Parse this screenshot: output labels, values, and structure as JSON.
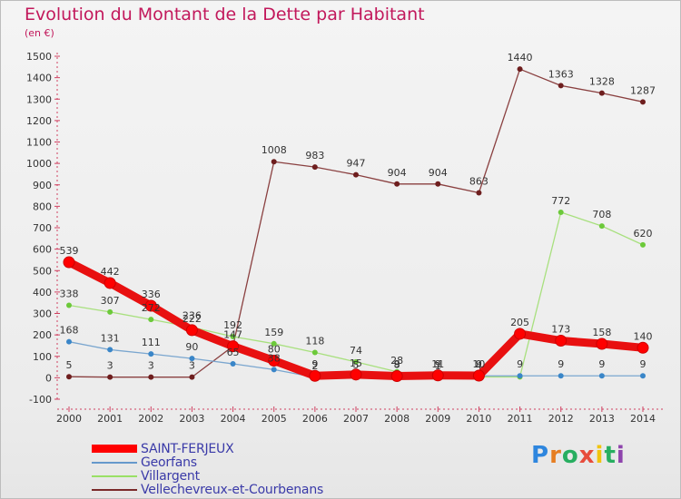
{
  "title": "Evolution du Montant de la Dette par Habitant",
  "unit": "(en €)",
  "logo": {
    "text": "Proxiti",
    "colors": [
      "#2e86de",
      "#e67e22",
      "#27ae60",
      "#e74c3c",
      "#f1c40f",
      "#27ae60",
      "#8e44ad"
    ]
  },
  "legend": [
    {
      "label": "SAINT-FERJEUX",
      "color": "#ff0000"
    },
    {
      "label": "Georfans",
      "color": "#6699cc"
    },
    {
      "label": "Villargent",
      "color": "#99e066"
    },
    {
      "label": "Vellechevreux-et-Courbenans",
      "color": "#7a2a2a"
    }
  ],
  "chart_data": {
    "type": "line",
    "title": "Evolution du Montant de la Dette par Habitant",
    "ylabel": "(en €)",
    "xlabel": "",
    "x": [
      "2000",
      "2001",
      "2002",
      "2003",
      "2004",
      "2005",
      "2006",
      "2007",
      "2008",
      "2009",
      "2010",
      "2011",
      "2012",
      "2013",
      "2014"
    ],
    "ylim": [
      -100,
      1500
    ],
    "yticks": [
      -100,
      0,
      100,
      200,
      300,
      400,
      500,
      600,
      700,
      800,
      900,
      1000,
      1100,
      1200,
      1300,
      1400,
      1500
    ],
    "grid": false,
    "legend_position": "bottom-left",
    "series": [
      {
        "name": "SAINT-FERJEUX",
        "color": "#ff0000",
        "line_color": "#e81010",
        "values": [
          539,
          442,
          336,
          222,
          147,
          80,
          9,
          15,
          8,
          11,
          10,
          205,
          173,
          158,
          140
        ],
        "labels": [
          "539",
          "442",
          "336",
          "222",
          "147",
          "80",
          "9",
          "15",
          "8",
          "11",
          "10",
          "205",
          "173",
          "158",
          "140"
        ]
      },
      {
        "name": "Georfans",
        "color": "#3a86c8",
        "line_color": "#7aa6cf",
        "values": [
          168,
          131,
          111,
          90,
          65,
          38,
          2,
          5,
          9,
          9,
          9,
          9,
          9,
          9,
          9
        ],
        "labels": [
          "168",
          "131",
          "111",
          "90",
          "65",
          "38",
          "2",
          "5",
          "9",
          "9",
          "9",
          "9",
          "9",
          "9",
          "9"
        ]
      },
      {
        "name": "Villargent",
        "color": "#6cc93a",
        "line_color": "#a8e07e",
        "values": [
          338,
          307,
          272,
          236,
          192,
          159,
          118,
          74,
          28,
          1,
          4,
          4,
          772,
          708,
          620
        ],
        "labels": [
          "338",
          "307",
          "272",
          "236",
          "192",
          "159",
          "118",
          "74",
          "28",
          "1",
          "4",
          "",
          "772",
          "708",
          "620"
        ]
      },
      {
        "name": "Vellechevreux-et-Courbenans",
        "color": "#6e1e1e",
        "line_color": "#8a4040",
        "values": [
          5,
          3,
          3,
          3,
          147,
          1008,
          983,
          947,
          904,
          904,
          863,
          1440,
          1363,
          1328,
          1287
        ],
        "labels": [
          "5",
          "3",
          "3",
          "3",
          "",
          "1008",
          "983",
          "947",
          "904",
          "904",
          "863",
          "1440",
          "1363",
          "1328",
          "1287"
        ]
      }
    ]
  }
}
